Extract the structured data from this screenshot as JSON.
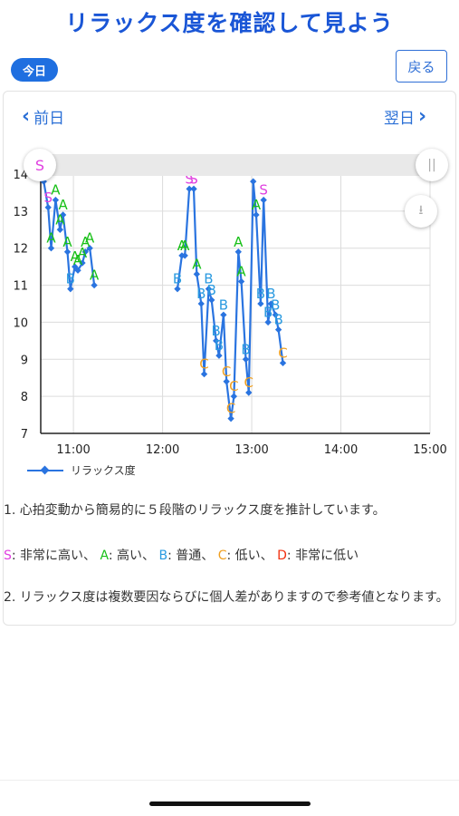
{
  "header": {
    "title": "リラックス度を確認して見よう",
    "today_label": "今日",
    "back_label": "戻る"
  },
  "nav": {
    "prev_label": "前日",
    "next_label": "翌日"
  },
  "legend": {
    "label": "リラックス度"
  },
  "notes": {
    "line1": "1. 心拍変動から簡易的に５段階のリラックス度を推計しています。",
    "levels": [
      {
        "code": "S",
        "text": ": 非常に高い、"
      },
      {
        "code": "A",
        "text": ": 高い、"
      },
      {
        "code": "B",
        "text": ": 普通、"
      },
      {
        "code": "C",
        "text": ": 低い、"
      },
      {
        "code": "D",
        "text": ": 非常に低い"
      }
    ],
    "line2": "2. リラックス度は複数要因ならびに個人差がありますので参考値となります。"
  },
  "colors": {
    "S": "#e040e0",
    "A": "#18c018",
    "B": "#2a9ae0",
    "C": "#f0a020",
    "D": "#f03010",
    "line": "#2a74e0"
  },
  "chart_data": {
    "type": "line",
    "series": [
      {
        "name": "リラックス度"
      }
    ],
    "ylim": [
      7,
      14
    ],
    "yticks": [
      "7",
      "8",
      "9",
      "10",
      "11",
      "12",
      "13",
      "14"
    ],
    "xticks": [
      "11:00",
      "12:00",
      "13:00",
      "14:00",
      "15:00"
    ],
    "segments": [
      [
        {
          "x": "10:40",
          "y": 13.8,
          "label": "S"
        },
        {
          "x": "10:43",
          "y": 13.1,
          "label": "S"
        },
        {
          "x": "10:45",
          "y": 12.0,
          "label": "A"
        },
        {
          "x": "10:48",
          "y": 13.3,
          "label": "A"
        },
        {
          "x": "10:51",
          "y": 12.5,
          "label": "A"
        },
        {
          "x": "10:53",
          "y": 12.9,
          "label": "A"
        },
        {
          "x": "10:56",
          "y": 11.9,
          "label": "A"
        },
        {
          "x": "10:58",
          "y": 10.9,
          "label": "B"
        },
        {
          "x": "11:01",
          "y": 11.5,
          "label": "A"
        },
        {
          "x": "11:03",
          "y": 11.4,
          "label": "A"
        },
        {
          "x": "11:06",
          "y": 11.6,
          "label": "A"
        },
        {
          "x": "11:08",
          "y": 11.9,
          "label": "A"
        },
        {
          "x": "11:11",
          "y": 12.0,
          "label": "A"
        },
        {
          "x": "11:14",
          "y": 11.0,
          "label": "A"
        }
      ],
      [
        {
          "x": "12:10",
          "y": 10.9,
          "label": "B"
        },
        {
          "x": "12:13",
          "y": 11.8,
          "label": "A"
        },
        {
          "x": "12:15",
          "y": 11.8,
          "label": "A"
        },
        {
          "x": "12:18",
          "y": 13.6,
          "label": "S"
        },
        {
          "x": "12:21",
          "y": 13.6,
          "label": "S"
        },
        {
          "x": "12:23",
          "y": 11.3,
          "label": "A"
        },
        {
          "x": "12:26",
          "y": 10.5,
          "label": "B"
        },
        {
          "x": "12:28",
          "y": 8.6,
          "label": "C"
        },
        {
          "x": "12:31",
          "y": 10.9,
          "label": "B"
        },
        {
          "x": "12:33",
          "y": 10.6,
          "label": "B"
        },
        {
          "x": "12:36",
          "y": 9.5,
          "label": "B"
        },
        {
          "x": "12:38",
          "y": 9.1,
          "label": "B"
        },
        {
          "x": "12:41",
          "y": 10.2,
          "label": "B"
        },
        {
          "x": "12:43",
          "y": 8.4,
          "label": "C"
        },
        {
          "x": "12:46",
          "y": 7.4,
          "label": "C"
        },
        {
          "x": "12:48",
          "y": 8.0,
          "label": "C"
        },
        {
          "x": "12:51",
          "y": 11.9,
          "label": "A"
        },
        {
          "x": "12:53",
          "y": 11.1,
          "label": "A"
        },
        {
          "x": "12:56",
          "y": 9.0,
          "label": "B"
        },
        {
          "x": "12:58",
          "y": 8.1,
          "label": "C"
        },
        {
          "x": "13:01",
          "y": 13.8,
          "label": "S"
        },
        {
          "x": "13:03",
          "y": 12.9,
          "label": "A"
        },
        {
          "x": "13:06",
          "y": 10.5,
          "label": "B"
        },
        {
          "x": "13:08",
          "y": 13.3,
          "label": "S"
        },
        {
          "x": "13:11",
          "y": 10.0,
          "label": "B"
        },
        {
          "x": "13:13",
          "y": 10.5,
          "label": "B"
        },
        {
          "x": "13:16",
          "y": 10.2,
          "label": "B"
        },
        {
          "x": "13:18",
          "y": 9.8,
          "label": "B"
        },
        {
          "x": "13:21",
          "y": 8.9,
          "label": "C"
        }
      ]
    ]
  }
}
